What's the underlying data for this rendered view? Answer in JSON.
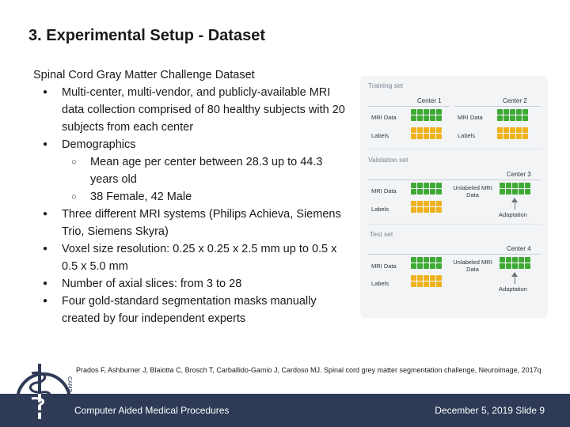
{
  "slide": {
    "title": "3. Experimental Setup - Dataset",
    "heading": "Spinal Cord Gray Matter Challenge Dataset",
    "bullets": [
      "Multi-center, multi-vendor, and publicly-available MRI data collection comprised of 80 healthy subjects with 20 subjects from each center",
      "Demographics",
      "Three different MRI systems (Philips Achieva, Siemens Trio, Siemens Skyra)",
      "Voxel size resolution: 0.25 x 0.25 x 2.5 mm up to 0.5 x 0.5 x 5.0 mm",
      "Number of axial slices: from 3 to 28",
      "Four gold-standard segmentation masks manually created by four independent experts"
    ],
    "sub_bullets": [
      "Mean age per center between 28.3 up to 44.3 years old",
      "38 Female, 42 Male"
    ],
    "bullet_glyph": "●",
    "sub_bullet_glyph": "○",
    "reference": "Prados F, Ashburner J, Blaiotta C, Brosch T, Carballido-Gamio J, Cardoso MJ. Spinal cord grey matter segmentation challenge, Neuroimage, 2017q",
    "logo_text": "CAMP"
  },
  "figure": {
    "training": {
      "title": "Training set",
      "center1": "Center 1",
      "center2": "Center 2",
      "mri_data": "MRI Data",
      "labels": "Labels"
    },
    "validation": {
      "title": "Validation set",
      "center": "Center 3",
      "mri_data": "MRI Data",
      "labels": "Labels",
      "unlabeled": "Unlabeled MRI Data",
      "adaptation": "Adaptation"
    },
    "test": {
      "title": "Test set",
      "center": "Center 4",
      "mri_data": "MRI Data",
      "labels": "Labels",
      "unlabeled": "Unlabeled MRI Data",
      "adaptation": "Adaptation"
    },
    "colors": {
      "mri": "#3fa935",
      "labels": "#f0b21c"
    }
  },
  "footer": {
    "left": "Computer Aided Medical Procedures",
    "right": "December 5, 2019  Slide 9",
    "background": "#2f3a57"
  }
}
